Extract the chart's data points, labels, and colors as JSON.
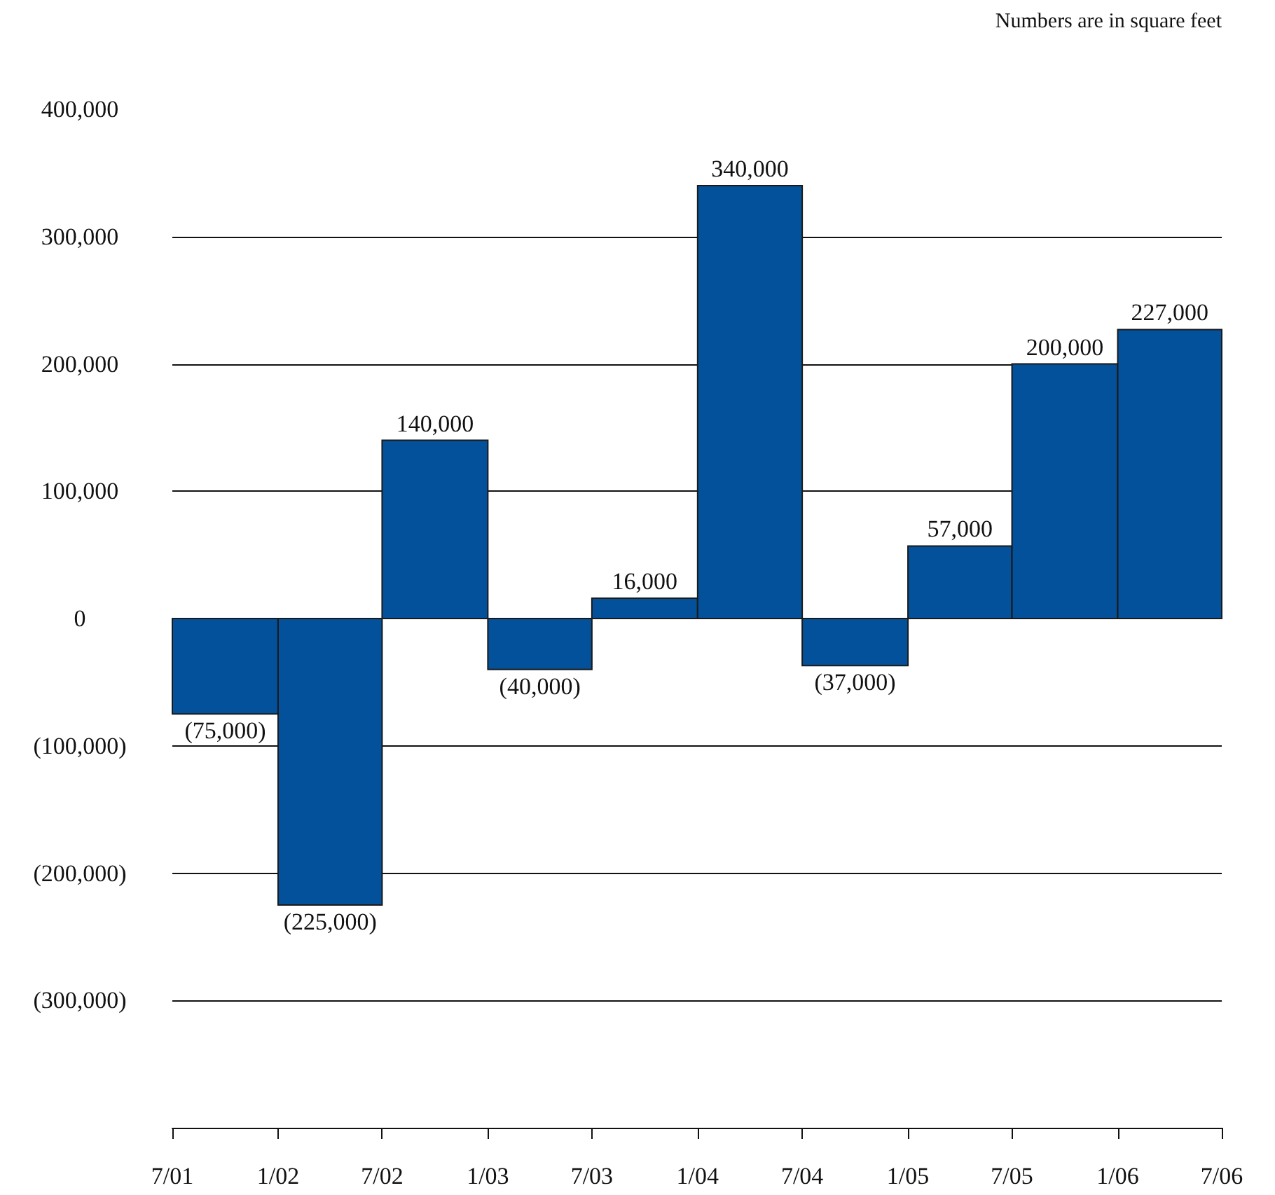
{
  "chart_data": {
    "type": "histogram",
    "annotations": [
      "Numbers are in square feet"
    ],
    "bins": [
      "2001-07",
      "2002-01",
      "2002-07",
      "2003-01",
      "2003-07",
      "2004-01",
      "2004-07",
      "2005-01",
      "2005-07",
      "2006-01",
      "2006-07"
    ],
    "values": [
      -75000,
      -225000,
      140000,
      -40000,
      16000,
      340000,
      -37000,
      57000,
      200000,
      227000
    ],
    "value_labels": [
      "(75,000)",
      "(225,000)",
      "140,000",
      "(40,000)",
      "16,000",
      "340,000",
      "(37,000)",
      "57,000",
      "200,000",
      "227,000"
    ],
    "color": "#03519a",
    "xlim": [
      "2001-07",
      "2006-07"
    ],
    "xticks": [
      {
        "value": "2001-07",
        "label": "7/01"
      },
      {
        "value": "2002-01",
        "label": "1/02"
      },
      {
        "value": "2002-07",
        "label": "7/02"
      },
      {
        "value": "2003-01",
        "label": "1/03"
      },
      {
        "value": "2003-07",
        "label": "7/03"
      },
      {
        "value": "2004-01",
        "label": "1/04"
      },
      {
        "value": "2004-07",
        "label": "7/04"
      },
      {
        "value": "2005-01",
        "label": "1/05"
      },
      {
        "value": "2005-07",
        "label": "7/05"
      },
      {
        "value": "2006-01",
        "label": "1/06"
      },
      {
        "value": "2006-07",
        "label": "7/06"
      }
    ],
    "ylim": [
      -400000,
      400000
    ],
    "yticks": [
      {
        "value": 400000,
        "label": "400,000"
      },
      {
        "value": 300000,
        "label": "300,000"
      },
      {
        "value": 200000,
        "label": "200,000"
      },
      {
        "value": 100000,
        "label": "100,000"
      },
      {
        "value": 0,
        "label": "0"
      },
      {
        "value": -100000,
        "label": "(100,000)"
      },
      {
        "value": -200000,
        "label": "(200,000)"
      },
      {
        "value": -300000,
        "label": "(300,000)"
      }
    ],
    "grid": "y"
  }
}
